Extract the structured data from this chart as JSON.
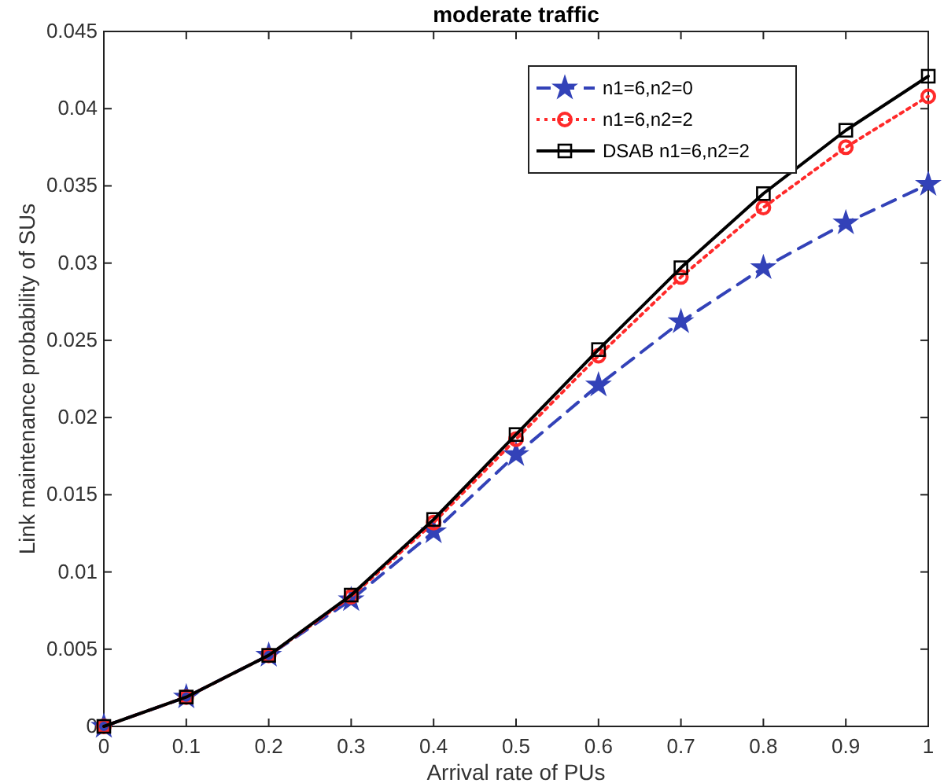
{
  "chart_data": {
    "type": "line",
    "title": "moderate traffic",
    "xlabel": "Arrival rate of PUs",
    "ylabel": "Link maintenance probability of SUs",
    "x": [
      0,
      0.1,
      0.2,
      0.3,
      0.4,
      0.5,
      0.6,
      0.7,
      0.8,
      0.9,
      1
    ],
    "xlim": [
      0,
      1
    ],
    "xticks": [
      0,
      0.1,
      0.2,
      0.3,
      0.4,
      0.5,
      0.6,
      0.7,
      0.8,
      0.9,
      1
    ],
    "ylim": [
      0,
      0.045
    ],
    "yticks": [
      0,
      0.005,
      0.01,
      0.015,
      0.02,
      0.025,
      0.03,
      0.035,
      0.04,
      0.045
    ],
    "grid": false,
    "legend": "top right",
    "series": [
      {
        "name": "n1=6,n2=0",
        "color": "#3342b8",
        "marker": "star",
        "line_style": "dashed",
        "values": [
          0,
          0.0019,
          0.0046,
          0.0082,
          0.0126,
          0.0176,
          0.0221,
          0.0262,
          0.0297,
          0.0326,
          0.0351
        ]
      },
      {
        "name": "n1=6,n2=2",
        "color": "#ff2a2a",
        "marker": "circle",
        "line_style": "dotted",
        "values": [
          0,
          0.0019,
          0.0046,
          0.0084,
          0.0132,
          0.0186,
          0.024,
          0.0291,
          0.0336,
          0.0375,
          0.0408
        ]
      },
      {
        "name": "DSAB n1=6,n2=2",
        "color": "#000000",
        "marker": "square",
        "line_style": "solid",
        "values": [
          0,
          0.0019,
          0.0046,
          0.0085,
          0.0134,
          0.0189,
          0.0244,
          0.0297,
          0.0345,
          0.0386,
          0.0421
        ]
      }
    ]
  }
}
